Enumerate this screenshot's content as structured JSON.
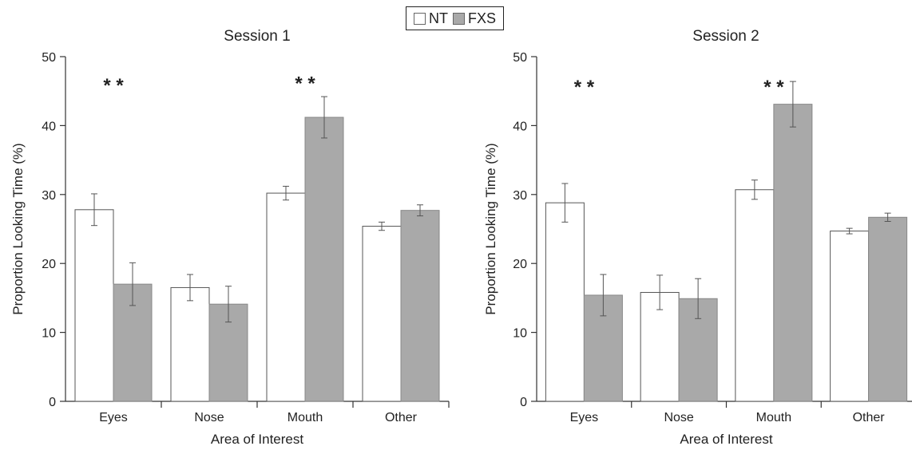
{
  "legend": {
    "items": [
      {
        "label": "NT",
        "color": "#ffffff"
      },
      {
        "label": "FXS",
        "color": "#a9a9a9"
      }
    ]
  },
  "chart_data": [
    {
      "type": "bar",
      "title": "Session 1",
      "xlabel": "Area of Interest",
      "ylabel": "Proportion Looking Time (%)",
      "ylim": [
        0,
        50
      ],
      "yticks": [
        0,
        10,
        20,
        30,
        40,
        50
      ],
      "categories": [
        "Eyes",
        "Nose",
        "Mouth",
        "Other"
      ],
      "series": [
        {
          "name": "NT",
          "color": "#ffffff",
          "values": [
            27.8,
            16.5,
            30.2,
            25.4
          ],
          "errors": [
            2.3,
            1.9,
            1.0,
            0.6
          ]
        },
        {
          "name": "FXS",
          "color": "#a9a9a9",
          "values": [
            17.0,
            14.1,
            41.2,
            27.7
          ],
          "errors": [
            3.1,
            2.6,
            3.0,
            0.8
          ]
        }
      ],
      "annotations": [
        {
          "text": "* *",
          "category": "Eyes",
          "y": 46.5
        },
        {
          "text": "* *",
          "category": "Mouth",
          "y": 46.8
        }
      ]
    },
    {
      "type": "bar",
      "title": "Session 2",
      "xlabel": "Area of Interest",
      "ylabel": "Proportion Looking Time (%)",
      "ylim": [
        0,
        50
      ],
      "yticks": [
        0,
        10,
        20,
        30,
        40,
        50
      ],
      "categories": [
        "Eyes",
        "Nose",
        "Mouth",
        "Other"
      ],
      "series": [
        {
          "name": "NT",
          "color": "#ffffff",
          "values": [
            28.8,
            15.8,
            30.7,
            24.7
          ],
          "errors": [
            2.8,
            2.5,
            1.4,
            0.4
          ]
        },
        {
          "name": "FXS",
          "color": "#a9a9a9",
          "values": [
            15.4,
            14.9,
            43.1,
            26.7
          ],
          "errors": [
            3.0,
            2.9,
            3.3,
            0.6
          ]
        }
      ],
      "annotations": [
        {
          "text": "* *",
          "category": "Eyes",
          "y": 46.3
        },
        {
          "text": "* *",
          "category": "Mouth",
          "y": 46.3
        }
      ]
    }
  ]
}
